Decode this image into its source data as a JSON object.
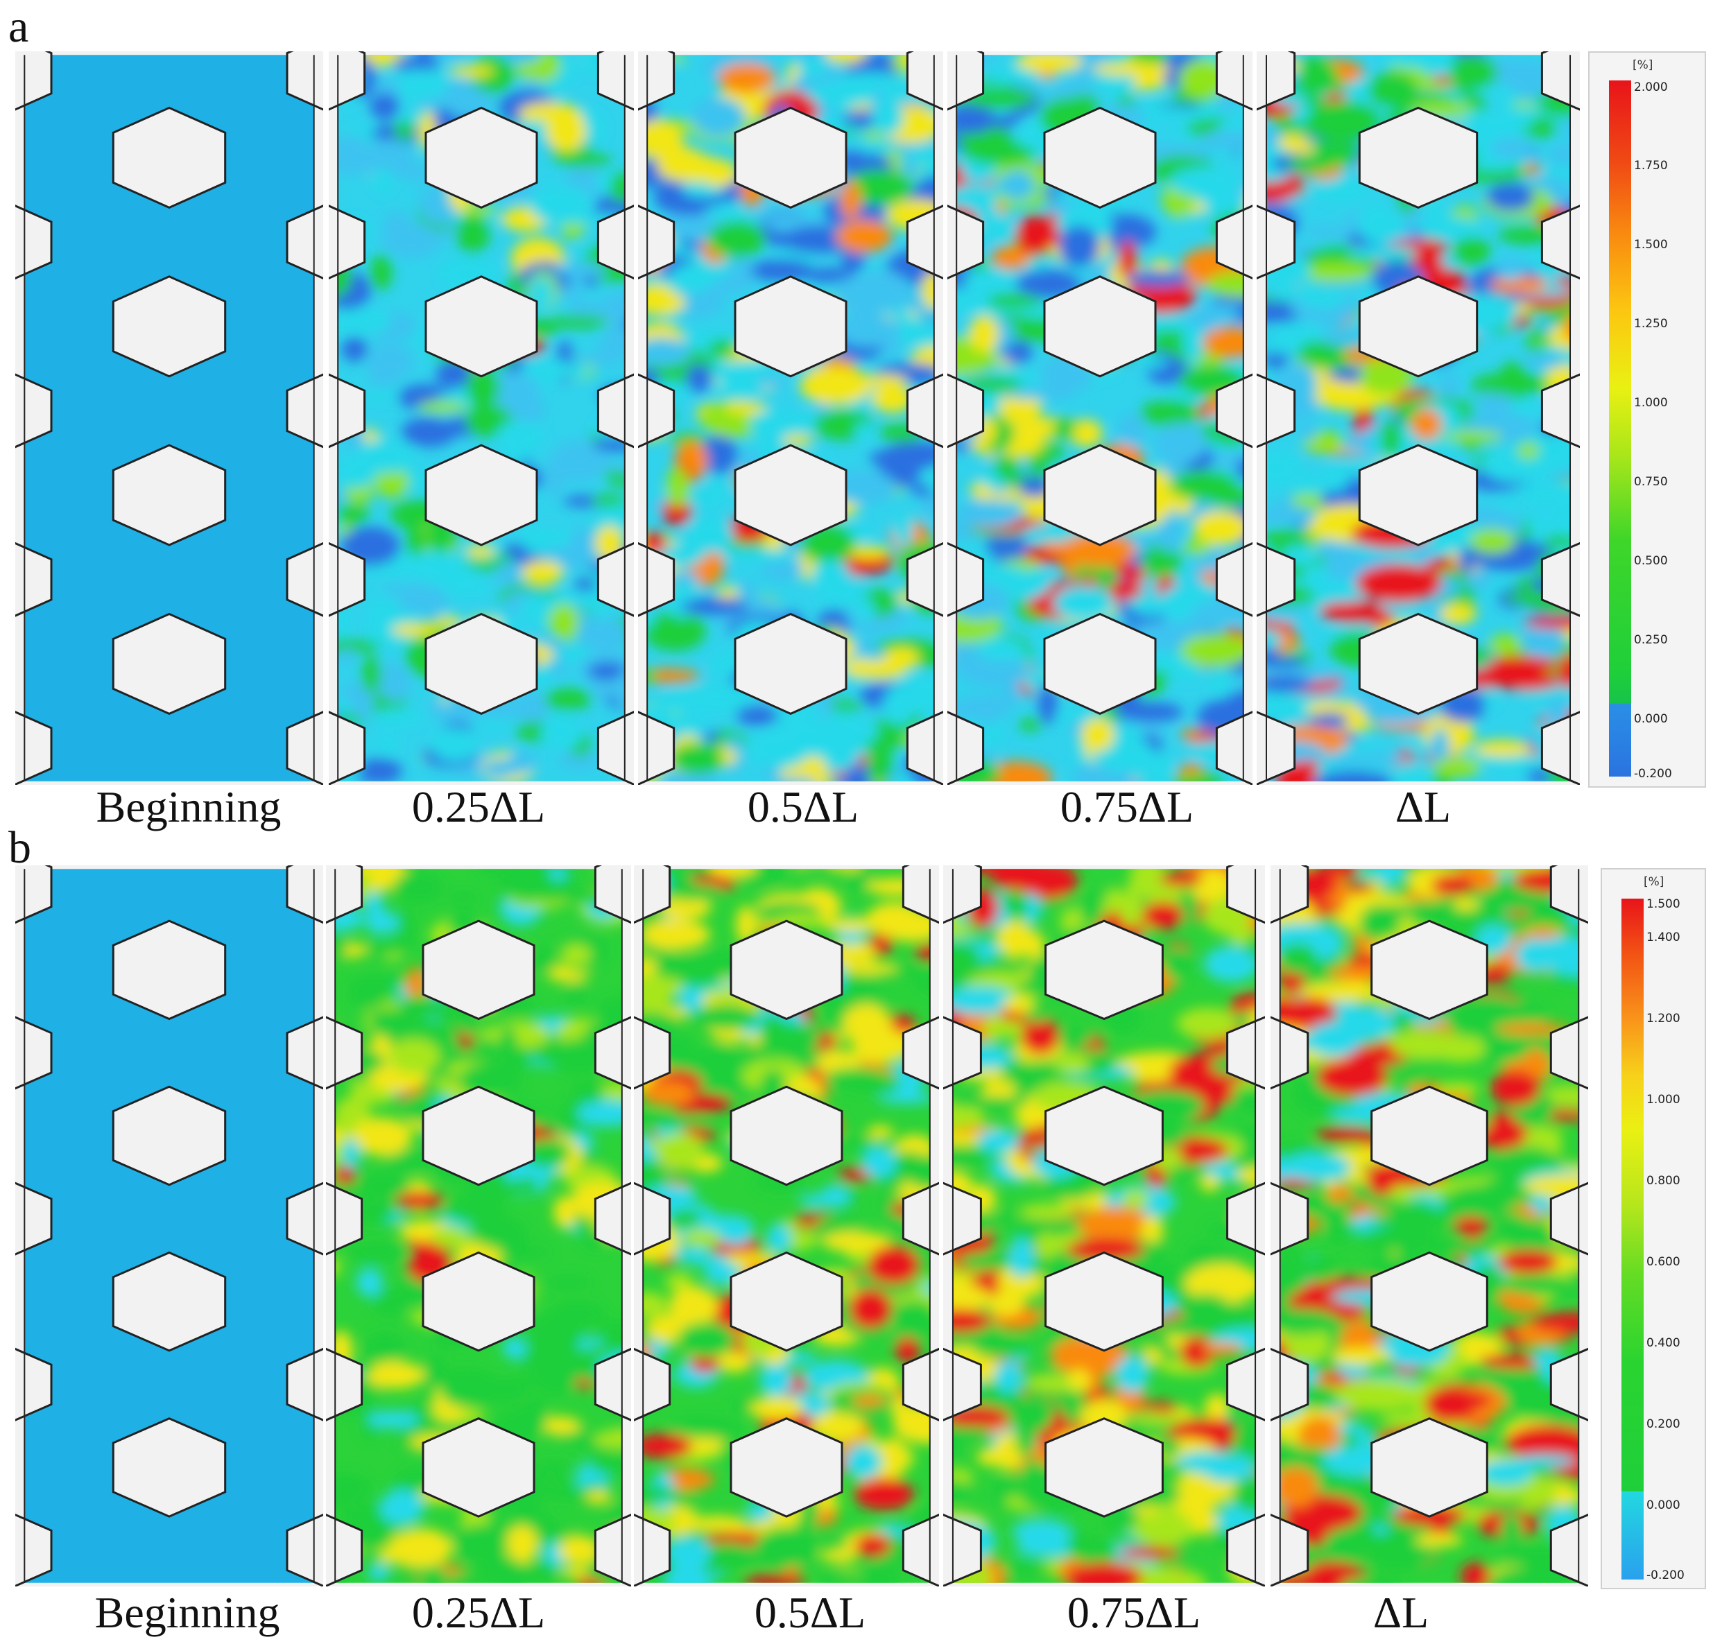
{
  "figure": {
    "panels": [
      {
        "letter": "a",
        "captions": [
          "Beginning",
          "0.25ΔL",
          "0.5ΔL",
          "0.75ΔL",
          "ΔL"
        ],
        "colorbar": {
          "unit": "[%]",
          "ticks": [
            "2.000",
            "1.750",
            "1.500",
            "1.250",
            "1.000",
            "0.750",
            "0.500",
            "0.250",
            "0.000",
            "-0.200"
          ],
          "range": [
            -0.2,
            2.0
          ]
        }
      },
      {
        "letter": "b",
        "captions": [
          "Beginning",
          "0.25ΔL",
          "0.5ΔL",
          "0.75ΔL",
          "ΔL"
        ],
        "colorbar": {
          "unit": "[%]",
          "ticks": [
            "1.500",
            "1.400",
            "1.200",
            "1.000",
            "0.800",
            "0.600",
            "0.400",
            "0.200",
            "0.000",
            "-0.200"
          ],
          "range": [
            -0.2,
            1.5
          ]
        }
      }
    ],
    "colors": {
      "undeformed": "#1fb0e6",
      "background": "#f2f2f2",
      "outline": "#222222"
    }
  }
}
